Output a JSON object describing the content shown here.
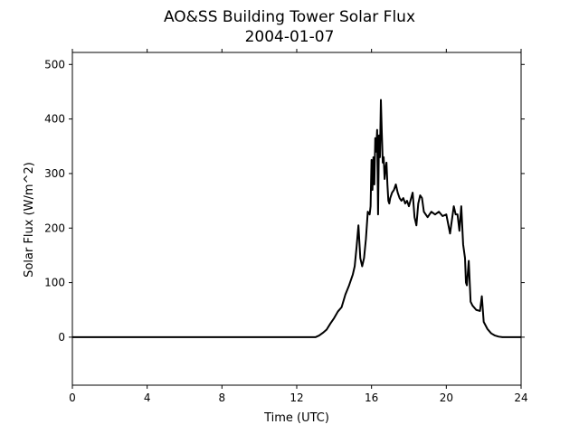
{
  "chart_data": {
    "type": "line",
    "title": "AO&SS Building Tower Solar Flux",
    "subtitle": "2004-01-07",
    "xlabel": "Time (UTC)",
    "ylabel": "Solar Flux (W/m^2)",
    "xlim": [
      0,
      24
    ],
    "ylim": [
      -88,
      522
    ],
    "xticks": [
      0,
      4,
      8,
      12,
      16,
      20,
      24
    ],
    "yticks": [
      0,
      100,
      200,
      300,
      400,
      500
    ],
    "grid": false,
    "series": [
      {
        "color": "#000000",
        "x": [
          0,
          12.0,
          13.0,
          13.2,
          13.4,
          13.6,
          13.8,
          14.0,
          14.2,
          14.4,
          14.6,
          14.8,
          15.0,
          15.1,
          15.2,
          15.3,
          15.4,
          15.5,
          15.6,
          15.7,
          15.8,
          15.9,
          15.95,
          16.0,
          16.05,
          16.1,
          16.15,
          16.2,
          16.25,
          16.3,
          16.35,
          16.4,
          16.45,
          16.5,
          16.55,
          16.6,
          16.65,
          16.7,
          16.75,
          16.8,
          16.85,
          16.9,
          16.95,
          17.0,
          17.1,
          17.2,
          17.3,
          17.4,
          17.5,
          17.6,
          17.7,
          17.8,
          17.9,
          18.0,
          18.2,
          18.3,
          18.4,
          18.5,
          18.6,
          18.7,
          18.8,
          19.0,
          19.2,
          19.4,
          19.6,
          19.8,
          20.0,
          20.2,
          20.4,
          20.5,
          20.6,
          20.7,
          20.8,
          20.9,
          21.0,
          21.05,
          21.1,
          21.2,
          21.3,
          21.4,
          21.6,
          21.8,
          21.9,
          22.0,
          22.2,
          22.4,
          22.6,
          22.8,
          23.0,
          23.5,
          24.0
        ],
        "y": [
          0,
          0,
          0,
          3,
          8,
          14,
          25,
          35,
          47,
          55,
          78,
          95,
          115,
          130,
          165,
          205,
          145,
          130,
          145,
          180,
          230,
          225,
          240,
          325,
          270,
          330,
          280,
          365,
          340,
          380,
          225,
          370,
          330,
          435,
          375,
          320,
          330,
          290,
          310,
          320,
          280,
          250,
          245,
          255,
          265,
          270,
          280,
          265,
          255,
          250,
          255,
          245,
          250,
          240,
          265,
          220,
          205,
          245,
          260,
          255,
          230,
          220,
          230,
          225,
          230,
          222,
          225,
          190,
          240,
          225,
          225,
          195,
          240,
          170,
          145,
          100,
          95,
          140,
          65,
          58,
          50,
          48,
          75,
          28,
          15,
          7,
          3,
          1,
          0,
          0,
          0
        ]
      }
    ]
  }
}
